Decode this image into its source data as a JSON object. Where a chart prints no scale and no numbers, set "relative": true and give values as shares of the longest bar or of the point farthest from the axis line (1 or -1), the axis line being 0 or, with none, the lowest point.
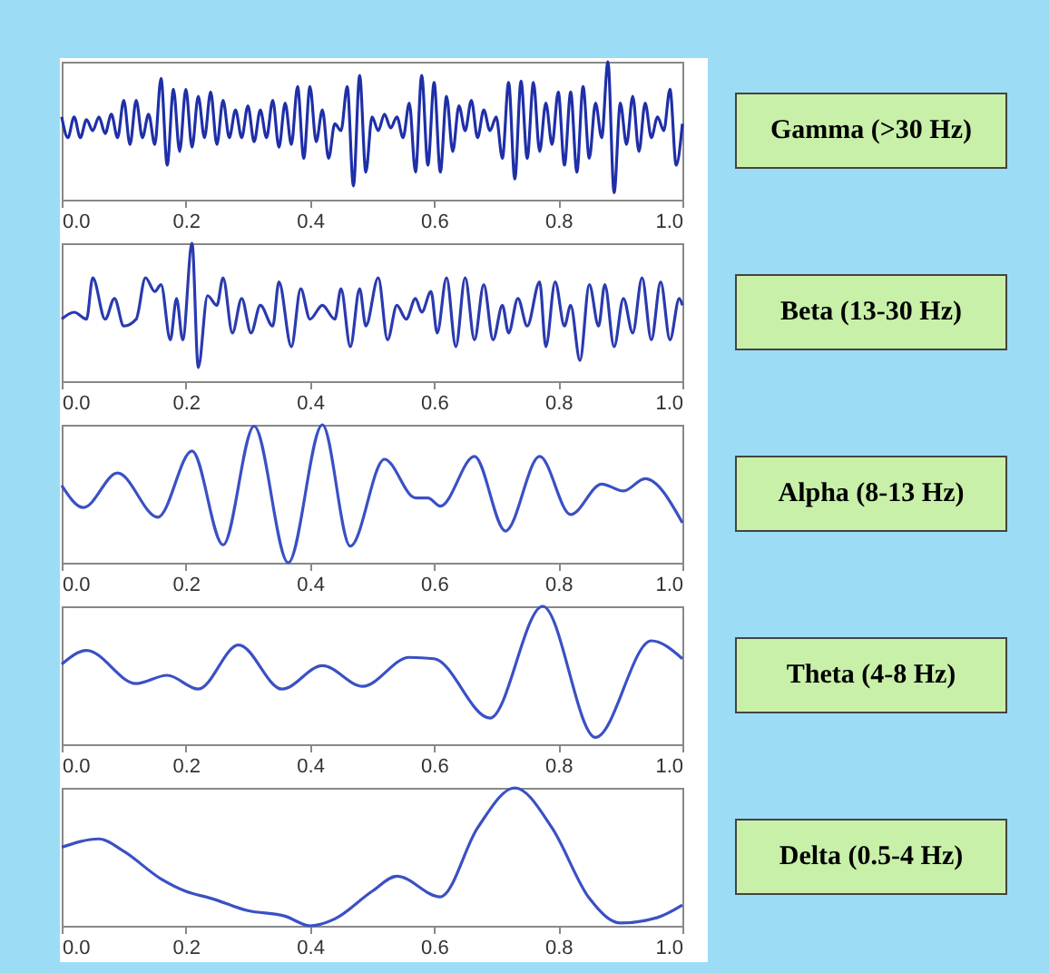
{
  "chart_data": [
    {
      "type": "line",
      "annotations": [
        "Gamma (>30 Hz)"
      ],
      "relative": true,
      "xlim": [
        0,
        1
      ],
      "xticks": [
        {
          "value": 0,
          "label": "0.0"
        },
        {
          "value": 0.2,
          "label": "0.2"
        },
        {
          "value": 0.4,
          "label": "0.4"
        },
        {
          "value": 0.6,
          "label": "0.6"
        },
        {
          "value": 0.8,
          "label": "0.8"
        },
        {
          "value": 1,
          "label": "1.0"
        }
      ],
      "x": [
        0,
        0.01,
        0.02,
        0.03,
        0.04,
        0.05,
        0.06,
        0.07,
        0.08,
        0.09,
        0.1,
        0.11,
        0.12,
        0.13,
        0.14,
        0.15,
        0.16,
        0.17,
        0.18,
        0.19,
        0.2,
        0.21,
        0.22,
        0.23,
        0.24,
        0.25,
        0.26,
        0.27,
        0.28,
        0.29,
        0.3,
        0.31,
        0.32,
        0.33,
        0.34,
        0.35,
        0.36,
        0.37,
        0.38,
        0.39,
        0.4,
        0.41,
        0.42,
        0.43,
        0.44,
        0.45,
        0.46,
        0.47,
        0.48,
        0.49,
        0.5,
        0.51,
        0.52,
        0.53,
        0.54,
        0.55,
        0.56,
        0.57,
        0.58,
        0.59,
        0.6,
        0.61,
        0.62,
        0.63,
        0.64,
        0.65,
        0.66,
        0.67,
        0.68,
        0.69,
        0.7,
        0.71,
        0.72,
        0.73,
        0.74,
        0.75,
        0.76,
        0.77,
        0.78,
        0.79,
        0.8,
        0.81,
        0.82,
        0.83,
        0.84,
        0.85,
        0.86,
        0.87,
        0.88,
        0.89,
        0.9,
        0.91,
        0.92,
        0.93,
        0.94,
        0.95,
        0.96,
        0.97,
        0.98,
        0.99,
        1
      ],
      "series": [
        {
          "color": "#1f2fa8",
          "values": [
            0.6,
            0.45,
            0.6,
            0.45,
            0.58,
            0.5,
            0.6,
            0.48,
            0.62,
            0.45,
            0.72,
            0.4,
            0.72,
            0.45,
            0.62,
            0.4,
            0.88,
            0.25,
            0.8,
            0.35,
            0.8,
            0.38,
            0.75,
            0.45,
            0.78,
            0.4,
            0.72,
            0.45,
            0.65,
            0.45,
            0.68,
            0.42,
            0.65,
            0.45,
            0.72,
            0.38,
            0.7,
            0.4,
            0.82,
            0.3,
            0.82,
            0.42,
            0.65,
            0.3,
            0.55,
            0.5,
            0.82,
            0.1,
            0.9,
            0.2,
            0.6,
            0.5,
            0.62,
            0.52,
            0.6,
            0.45,
            0.7,
            0.2,
            0.9,
            0.25,
            0.85,
            0.2,
            0.75,
            0.35,
            0.68,
            0.5,
            0.72,
            0.45,
            0.65,
            0.5,
            0.6,
            0.3,
            0.85,
            0.15,
            0.86,
            0.3,
            0.85,
            0.35,
            0.7,
            0.4,
            0.78,
            0.25,
            0.78,
            0.2,
            0.82,
            0.3,
            0.7,
            0.45,
            1.0,
            0.05,
            0.7,
            0.4,
            0.75,
            0.35,
            0.7,
            0.45,
            0.6,
            0.5,
            0.8,
            0.25,
            0.55
          ]
        }
      ]
    },
    {
      "type": "line",
      "annotations": [
        "Beta (13-30 Hz)"
      ],
      "relative": true,
      "xlim": [
        0,
        1
      ],
      "xticks": [
        {
          "value": 0,
          "label": "0.0"
        },
        {
          "value": 0.2,
          "label": "0.2"
        },
        {
          "value": 0.4,
          "label": "0.4"
        },
        {
          "value": 0.6,
          "label": "0.6"
        },
        {
          "value": 0.8,
          "label": "0.8"
        },
        {
          "value": 1,
          "label": "1.0"
        }
      ],
      "x": [
        0,
        0.02,
        0.04,
        0.05,
        0.07,
        0.085,
        0.1,
        0.12,
        0.135,
        0.15,
        0.16,
        0.175,
        0.185,
        0.195,
        0.21,
        0.22,
        0.235,
        0.25,
        0.26,
        0.275,
        0.29,
        0.305,
        0.32,
        0.34,
        0.35,
        0.37,
        0.385,
        0.4,
        0.42,
        0.44,
        0.45,
        0.465,
        0.48,
        0.49,
        0.51,
        0.525,
        0.54,
        0.555,
        0.57,
        0.58,
        0.595,
        0.605,
        0.62,
        0.635,
        0.65,
        0.665,
        0.68,
        0.695,
        0.71,
        0.72,
        0.735,
        0.75,
        0.77,
        0.78,
        0.795,
        0.81,
        0.82,
        0.835,
        0.85,
        0.865,
        0.875,
        0.89,
        0.905,
        0.92,
        0.935,
        0.95,
        0.965,
        0.98,
        0.995,
        1
      ],
      "series": [
        {
          "color": "#2a3ab0",
          "values": [
            0.45,
            0.5,
            0.45,
            0.75,
            0.45,
            0.6,
            0.4,
            0.45,
            0.75,
            0.65,
            0.7,
            0.3,
            0.6,
            0.3,
            1.0,
            0.1,
            0.62,
            0.55,
            0.75,
            0.35,
            0.6,
            0.35,
            0.55,
            0.4,
            0.72,
            0.25,
            0.67,
            0.45,
            0.55,
            0.45,
            0.67,
            0.25,
            0.67,
            0.4,
            0.75,
            0.3,
            0.55,
            0.45,
            0.6,
            0.5,
            0.65,
            0.35,
            0.75,
            0.25,
            0.75,
            0.3,
            0.7,
            0.3,
            0.55,
            0.35,
            0.6,
            0.4,
            0.72,
            0.25,
            0.72,
            0.4,
            0.55,
            0.15,
            0.7,
            0.4,
            0.7,
            0.25,
            0.6,
            0.35,
            0.75,
            0.3,
            0.72,
            0.3,
            0.6,
            0.55
          ]
        }
      ]
    },
    {
      "type": "line",
      "annotations": [
        "Alpha (8-13 Hz)"
      ],
      "relative": true,
      "xlim": [
        0,
        1
      ],
      "xticks": [
        {
          "value": 0,
          "label": "0.0"
        },
        {
          "value": 0.2,
          "label": "0.2"
        },
        {
          "value": 0.4,
          "label": "0.4"
        },
        {
          "value": 0.6,
          "label": "0.6"
        },
        {
          "value": 0.8,
          "label": "0.8"
        },
        {
          "value": 1,
          "label": "1.0"
        }
      ],
      "x": [
        0,
        0.035,
        0.09,
        0.155,
        0.21,
        0.26,
        0.31,
        0.365,
        0.42,
        0.465,
        0.52,
        0.57,
        0.59,
        0.61,
        0.665,
        0.715,
        0.77,
        0.82,
        0.87,
        0.905,
        0.94,
        1
      ],
      "series": [
        {
          "color": "#3a50c4",
          "values": [
            0.56,
            0.4,
            0.65,
            0.33,
            0.81,
            0.13,
            0.99,
            0,
            1,
            0.12,
            0.75,
            0.47,
            0.47,
            0.41,
            0.77,
            0.23,
            0.77,
            0.35,
            0.57,
            0.52,
            0.61,
            0.29
          ]
        }
      ]
    },
    {
      "type": "line",
      "annotations": [
        "Theta (4-8 Hz)"
      ],
      "relative": true,
      "xlim": [
        0,
        1
      ],
      "xticks": [
        {
          "value": 0,
          "label": "0.0"
        },
        {
          "value": 0.2,
          "label": "0.2"
        },
        {
          "value": 0.4,
          "label": "0.4"
        },
        {
          "value": 0.6,
          "label": "0.6"
        },
        {
          "value": 0.8,
          "label": "0.8"
        },
        {
          "value": 1,
          "label": "1.0"
        }
      ],
      "x": [
        0,
        0.04,
        0.12,
        0.17,
        0.22,
        0.285,
        0.355,
        0.42,
        0.485,
        0.56,
        0.6,
        0.69,
        0.775,
        0.86,
        0.95,
        1
      ],
      "series": [
        {
          "color": "#3a50c4",
          "values": [
            0.58,
            0.68,
            0.44,
            0.5,
            0.4,
            0.72,
            0.4,
            0.57,
            0.42,
            0.63,
            0.62,
            0.19,
            1,
            0.05,
            0.75,
            0.62
          ]
        }
      ]
    },
    {
      "type": "line",
      "annotations": [
        "Delta (0.5-4 Hz)"
      ],
      "relative": true,
      "xlim": [
        0,
        1
      ],
      "xticks": [
        {
          "value": 0,
          "label": "0.0"
        },
        {
          "value": 0.2,
          "label": "0.2"
        },
        {
          "value": 0.4,
          "label": "0.4"
        },
        {
          "value": 0.6,
          "label": "0.6"
        },
        {
          "value": 0.8,
          "label": "0.8"
        },
        {
          "value": 1,
          "label": "1.0"
        }
      ],
      "x": [
        0,
        0.06,
        0.1,
        0.16,
        0.2,
        0.24,
        0.3,
        0.36,
        0.4,
        0.44,
        0.5,
        0.54,
        0.61,
        0.67,
        0.73,
        0.79,
        0.85,
        0.9,
        0.96,
        1
      ],
      "series": [
        {
          "color": "#3a50c4",
          "values": [
            0.57,
            0.63,
            0.54,
            0.34,
            0.25,
            0.2,
            0.11,
            0.07,
            0,
            0.05,
            0.25,
            0.36,
            0.21,
            0.71,
            1,
            0.71,
            0.2,
            0.02,
            0.06,
            0.15
          ]
        }
      ]
    }
  ]
}
